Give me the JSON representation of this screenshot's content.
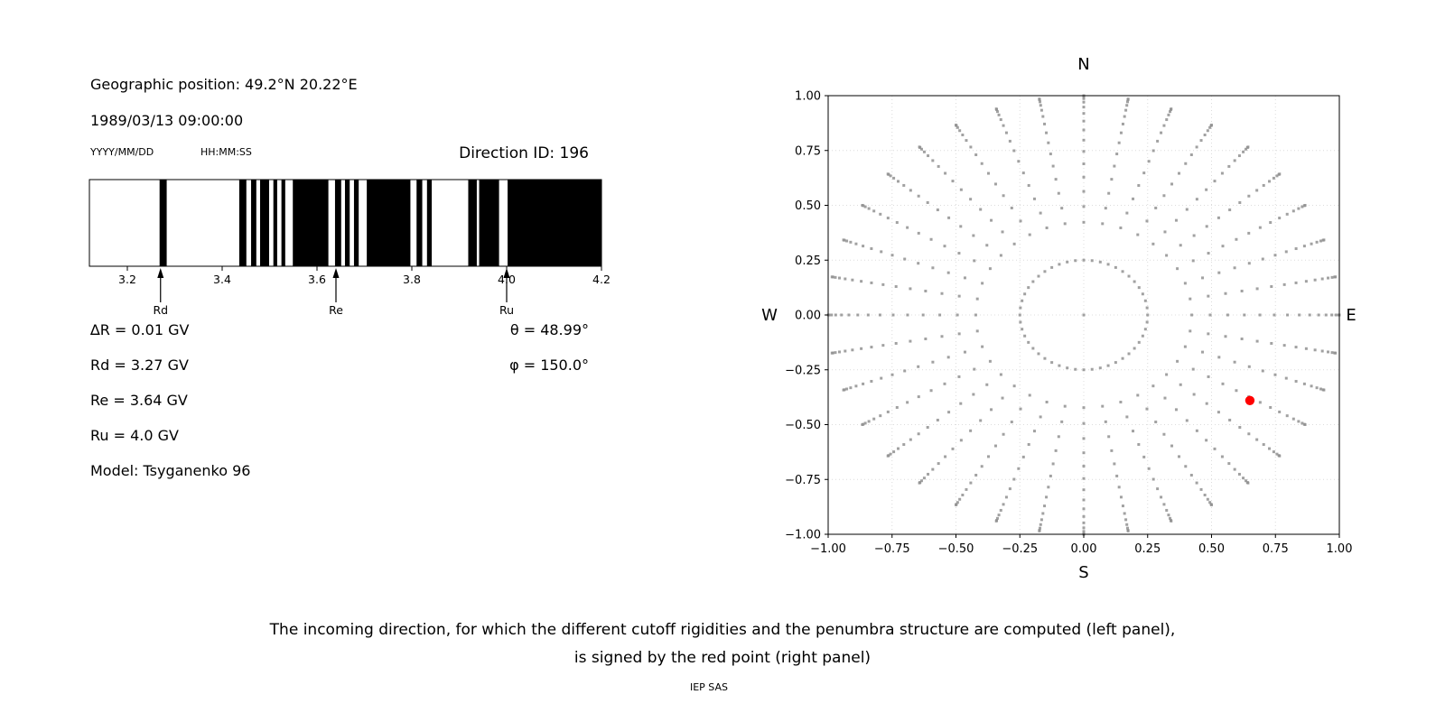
{
  "header": {
    "geo_position": "Geographic position: 49.2°N 20.22°E",
    "datetime": "1989/03/13 09:00:00",
    "date_format": "YYYY/MM/DD",
    "time_format": "HH:MM:SS",
    "direction_id": "Direction ID: 196"
  },
  "values": {
    "lines": [
      "∆R = 0.01 GV",
      "Rd = 3.27 GV",
      "Re = 3.64 GV",
      "Ru = 4.0 GV",
      "Model: Tsyganenko 96"
    ],
    "angles": [
      "θ = 48.99°",
      "φ = 150.0°"
    ]
  },
  "caption": {
    "line1": "The incoming direction, for which the different cutoff rigidities and the penumbra structure are computed (left panel),",
    "line2": "is signed by the red point (right panel)",
    "credit": "IEP SAS"
  },
  "chart_data": [
    {
      "type": "barcode",
      "name": "penumbra-structure",
      "xlabel_unit": "GV",
      "xlim": [
        3.12,
        4.2
      ],
      "xticks": [
        3.2,
        3.4,
        3.6,
        3.8,
        4.0,
        4.2
      ],
      "xticklabels": [
        "3.2",
        "3.4",
        "3.6",
        "3.8",
        "4.0",
        "4.2"
      ],
      "bar_color": "#000000",
      "background": "#ffffff",
      "allowed_bands_GV": [
        [
          3.268,
          3.283
        ],
        [
          3.436,
          3.451
        ],
        [
          3.461,
          3.472
        ],
        [
          3.48,
          3.499
        ],
        [
          3.508,
          3.516
        ],
        [
          3.525,
          3.533
        ],
        [
          3.549,
          3.624
        ],
        [
          3.638,
          3.651
        ],
        [
          3.659,
          3.669
        ],
        [
          3.678,
          3.688
        ],
        [
          3.705,
          3.797
        ],
        [
          3.81,
          3.822
        ],
        [
          3.832,
          3.842
        ],
        [
          3.919,
          3.937
        ],
        [
          3.942,
          3.984
        ],
        [
          4.002,
          4.2
        ]
      ],
      "markers": [
        {
          "label": "Rd",
          "value_GV": 3.27
        },
        {
          "label": "Re",
          "value_GV": 3.64
        },
        {
          "label": "Ru",
          "value_GV": 4.0
        }
      ]
    },
    {
      "type": "scatter",
      "name": "incoming-direction-map",
      "xlim": [
        -1,
        1
      ],
      "ylim": [
        -1,
        1
      ],
      "grid": true,
      "xticks": [
        -1,
        -0.75,
        -0.5,
        -0.25,
        0,
        0.25,
        0.5,
        0.75,
        1
      ],
      "yticks": [
        1,
        0.75,
        0.5,
        0.25,
        0,
        -0.25,
        -0.5,
        -0.75,
        -1
      ],
      "xticklabels": [
        "−1.00",
        "−0.75",
        "−0.50",
        "−0.25",
        "0.00",
        "0.25",
        "0.50",
        "0.75",
        "1.00"
      ],
      "yticklabels": [
        "1.00",
        "0.75",
        "0.50",
        "0.25",
        "0.00",
        "−0.25",
        "−0.50",
        "−0.75",
        "−1.00"
      ],
      "cardinal_labels": {
        "top": "N",
        "bottom": "S",
        "left": "W",
        "right": "E"
      },
      "dot_pattern": {
        "radius_rule": "r = sin(zenith)",
        "azimuth_count": 36,
        "zenith_min_deg": 25,
        "zenith_max_deg": 90,
        "dots_per_spoke": 15,
        "ring_radius": 0.25,
        "ring_dot_count": 48,
        "center_dot": true
      },
      "dot_color": "#909090",
      "red_point": {
        "x": 0.65,
        "y": -0.39,
        "color": "#ff0000"
      }
    }
  ]
}
